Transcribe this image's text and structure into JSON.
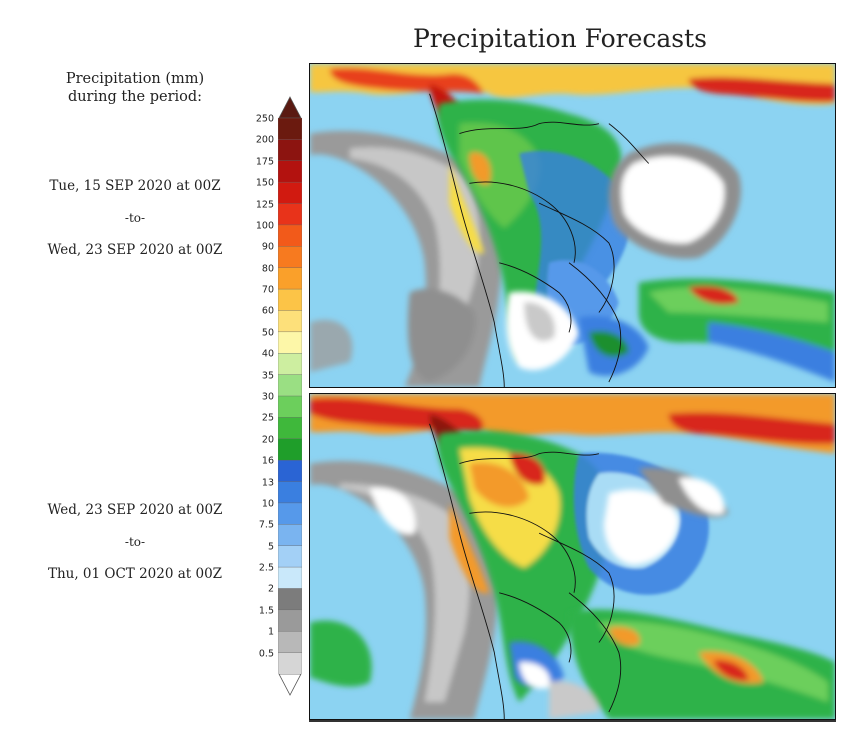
{
  "title": "Precipitation Forecasts",
  "legend_title": "Precipitation (mm)\nduring the period:",
  "legend_title_lines": [
    "Precipitation (mm)",
    "during the period:"
  ],
  "periods": [
    {
      "start": "Tue, 15 SEP 2020 at 00Z",
      "separator": "-to-",
      "end": "Wed, 23 SEP 2020 at 00Z"
    },
    {
      "start": "Wed, 23 SEP 2020 at 00Z",
      "separator": "-to-",
      "end": "Thu, 01 OCT 2020 at 00Z"
    }
  ],
  "colorbar": {
    "labels": [
      "250",
      "200",
      "175",
      "150",
      "125",
      "100",
      "90",
      "80",
      "70",
      "60",
      "50",
      "40",
      "35",
      "30",
      "25",
      "20",
      "16",
      "13",
      "10",
      "7.5",
      "5",
      "2.5",
      "2",
      "1.5",
      "1",
      "0.5"
    ],
    "colors": [
      "#6b1a0f",
      "#8c1410",
      "#b3120f",
      "#d11a10",
      "#e8331a",
      "#f25a1a",
      "#f77a1f",
      "#faa02a",
      "#fcc447",
      "#fde07a",
      "#fdf7a8",
      "#cdeea0",
      "#9adf83",
      "#6ccf5c",
      "#3fb83b",
      "#1f9e2a",
      "#2a64d4",
      "#3a7fe0",
      "#5699ea",
      "#7ab4f0",
      "#a3d0f6",
      "#c9e8fa",
      "#7c7c7c",
      "#9a9a9a",
      "#b8b8b8",
      "#d6d6d6"
    ]
  },
  "colors": {
    "ocean": "#8cd3f2",
    "dry_gray": "#8f8f8f",
    "light_gray": "#c9c9c9",
    "white": "#ffffff",
    "green": "#2fb24a",
    "dark_green": "#1d8f2f",
    "yellow": "#f6dd46",
    "orange": "#f39a2a",
    "red": "#d8261a",
    "dark_red": "#8c1410",
    "blue": "#3a7fe0",
    "light_blue": "#a9dcf5"
  }
}
